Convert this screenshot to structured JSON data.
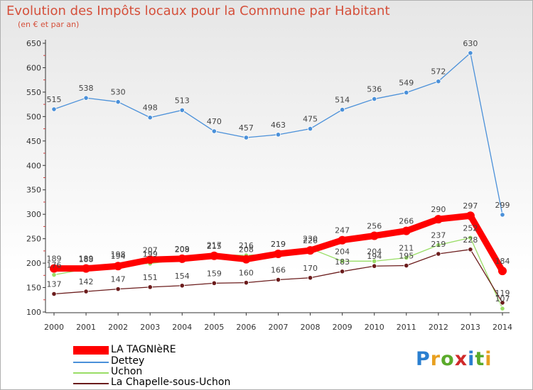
{
  "chart_data": {
    "type": "line",
    "title": "Evolution des Impôts locaux pour la Commune par Habitant",
    "subtitle": "(en € et par an)",
    "xlabel": "",
    "ylabel": "",
    "ylim": [
      100,
      650
    ],
    "yticks": [
      100,
      150,
      200,
      250,
      300,
      350,
      400,
      450,
      500,
      550,
      600,
      650
    ],
    "grid": false,
    "legend_position": "bottom-left",
    "x": [
      "2000",
      "2001",
      "2002",
      "2003",
      "2004",
      "2005",
      "2006",
      "2007",
      "2008",
      "2009",
      "2010",
      "2011",
      "2012",
      "2013",
      "2014"
    ],
    "series": [
      {
        "name": "LA TAGNIèRE",
        "color": "#ff0000",
        "values": [
          189,
          189,
          194,
          207,
          209,
          215,
          208,
          219,
          226,
          247,
          256,
          266,
          290,
          297,
          184
        ]
      },
      {
        "name": "Dettey",
        "color": "#4a90d9",
        "values": [
          515,
          538,
          530,
          498,
          513,
          470,
          457,
          463,
          475,
          514,
          536,
          549,
          572,
          630,
          299
        ]
      },
      {
        "name": "Uchon",
        "color": "#99dd66",
        "values": [
          176,
          188,
          198,
          199,
          208,
          217,
          216,
          219,
          230,
          204,
          204,
          211,
          237,
          252,
          107
        ]
      },
      {
        "name": "La Chapelle-sous-Uchon",
        "color": "#6b1c1c",
        "values": [
          137,
          142,
          147,
          151,
          154,
          159,
          160,
          166,
          170,
          183,
          194,
          195,
          219,
          228,
          119
        ]
      }
    ],
    "data_labels": [
      [
        "189",
        "189",
        "194",
        "207",
        "209",
        "215",
        "208",
        "219",
        "226",
        "247",
        "256",
        "266",
        "290",
        "297",
        "184"
      ],
      [
        "515",
        "538",
        "530",
        "498",
        "513",
        "470",
        "457",
        "463",
        "475",
        "514",
        "536",
        "549",
        "572",
        "630",
        "299"
      ],
      [
        "176",
        "188",
        "198",
        "199",
        "208",
        "217",
        "216",
        "219",
        "230",
        "204",
        "204",
        "211",
        "237",
        "252",
        "107"
      ],
      [
        "137",
        "142",
        "147",
        "151",
        "154",
        "159",
        "160",
        "166",
        "170",
        "183",
        "194",
        "195",
        "219",
        "228",
        "119"
      ]
    ]
  },
  "logo_text": "Proxiti"
}
